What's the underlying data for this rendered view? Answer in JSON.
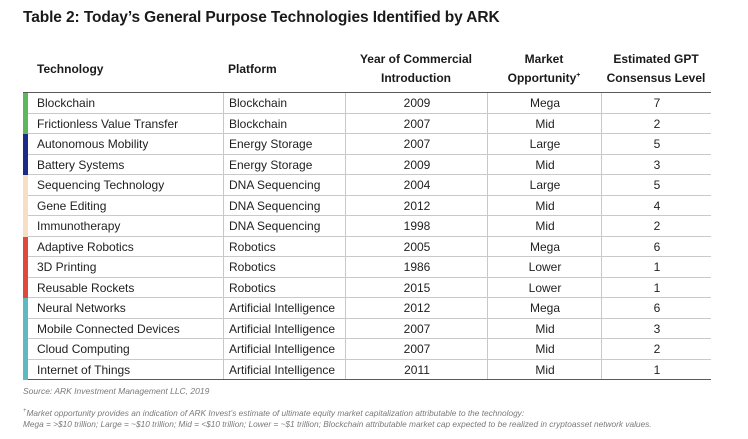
{
  "title": "Table 2: Today’s General Purpose Technologies Identified by ARK",
  "headers": {
    "technology": "Technology",
    "platform": "Platform",
    "year_line1": "Year of Commercial",
    "year_line2": "Introduction",
    "market_line1": "Market",
    "market_line2": "Opportunity",
    "market_mark": "+",
    "gpt_line1": "Estimated GPT",
    "gpt_line2": "Consensus Level"
  },
  "colors": {
    "Blockchain": "#5cb85c",
    "Energy Storage": "#1c2a8c",
    "DNA Sequencing": "#f6dfc2",
    "Robotics": "#e0483a",
    "Artificial Intelligence": "#5fb9c1"
  },
  "rows": [
    {
      "technology": "Blockchain",
      "platform": "Blockchain",
      "year": "2009",
      "market": "Mega",
      "gpt": "7"
    },
    {
      "technology": "Frictionless Value Transfer",
      "platform": "Blockchain",
      "year": "2007",
      "market": "Mid",
      "gpt": "2"
    },
    {
      "technology": "Autonomous Mobility",
      "platform": "Energy Storage",
      "year": "2007",
      "market": "Large",
      "gpt": "5"
    },
    {
      "technology": "Battery Systems",
      "platform": "Energy Storage",
      "year": "2009",
      "market": "Mid",
      "gpt": "3"
    },
    {
      "technology": "Sequencing Technology",
      "platform": "DNA Sequencing",
      "year": "2004",
      "market": "Large",
      "gpt": "5"
    },
    {
      "technology": "Gene Editing",
      "platform": "DNA Sequencing",
      "year": "2012",
      "market": "Mid",
      "gpt": "4"
    },
    {
      "technology": "Immunotherapy",
      "platform": "DNA Sequencing",
      "year": "1998",
      "market": "Mid",
      "gpt": "2"
    },
    {
      "technology": "Adaptive Robotics",
      "platform": "Robotics",
      "year": "2005",
      "market": "Mega",
      "gpt": "6"
    },
    {
      "technology": "3D Printing",
      "platform": "Robotics",
      "year": "1986",
      "market": "Lower",
      "gpt": "1"
    },
    {
      "technology": "Reusable Rockets",
      "platform": "Robotics",
      "year": "2015",
      "market": "Lower",
      "gpt": "1"
    },
    {
      "technology": "Neural Networks",
      "platform": "Artificial Intelligence",
      "year": "2012",
      "market": "Mega",
      "gpt": "6"
    },
    {
      "technology": "Mobile Connected Devices",
      "platform": "Artificial Intelligence",
      "year": "2007",
      "market": "Mid",
      "gpt": "3"
    },
    {
      "technology": "Cloud Computing",
      "platform": "Artificial Intelligence",
      "year": "2007",
      "market": "Mid",
      "gpt": "2"
    },
    {
      "technology": "Internet of Things",
      "platform": "Artificial Intelligence",
      "year": "2011",
      "market": "Mid",
      "gpt": "1"
    }
  ],
  "source": "Source: ARK Investment Management LLC, 2019",
  "footnote_mark": "+",
  "footnote_line1": "Market opportunity provides an indication of ARK Invest’s estimate of ultimate equity market capitalization attributable to the technology:",
  "footnote_line2": "Mega = >$10 trillion; Large = ~$10 trillion; Mid = <$10 trillion; Lower = ~$1 trillion; Blockchain attributable market cap expected to be realized in cryptoasset network values."
}
